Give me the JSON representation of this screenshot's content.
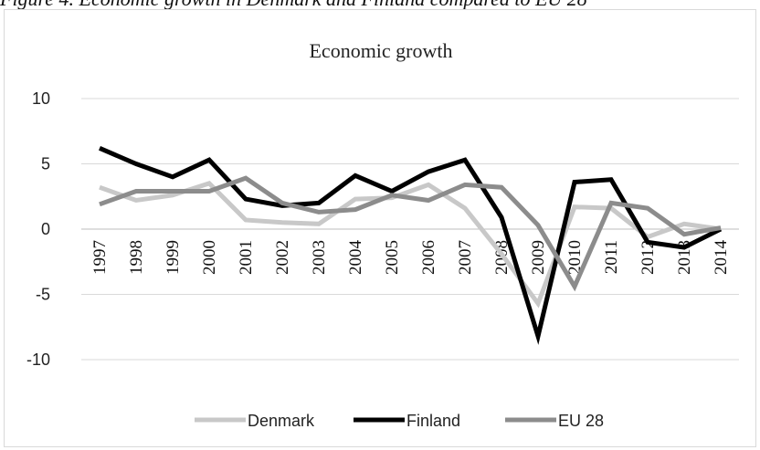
{
  "caption": "Figure 4. Economic growth in Denmark and Finland compared to EU 28",
  "chart_data": {
    "type": "line",
    "title": "Economic growth",
    "xlabel": "",
    "ylabel": "",
    "ylim": [
      -10,
      10
    ],
    "yticks": [
      10,
      5,
      0,
      -5,
      -10
    ],
    "grid": true,
    "legend_position": "bottom",
    "x": [
      "1997",
      "1998",
      "1999",
      "2000",
      "2001",
      "2002",
      "2003",
      "2004",
      "2005",
      "2006",
      "2007",
      "2008",
      "2009",
      "2010",
      "2011",
      "2012",
      "2013",
      "2014"
    ],
    "series": [
      {
        "name": "Denmark",
        "color": "#c8c8c8",
        "values": [
          3.2,
          2.2,
          2.6,
          3.5,
          0.7,
          0.5,
          0.4,
          2.3,
          2.4,
          3.4,
          1.6,
          -1.9,
          -5.7,
          1.7,
          1.6,
          -0.6,
          0.4,
          0.0
        ]
      },
      {
        "name": "Finland",
        "color": "#000000",
        "values": [
          6.2,
          5.0,
          4.0,
          5.3,
          2.3,
          1.8,
          2.0,
          4.1,
          2.9,
          4.4,
          5.3,
          0.9,
          -8.2,
          3.6,
          3.8,
          -1.0,
          -1.4,
          0.0
        ]
      },
      {
        "name": "EU 28",
        "color": "#8c8c8c",
        "values": [
          1.9,
          2.9,
          2.9,
          2.9,
          3.9,
          2.0,
          1.3,
          1.5,
          2.6,
          2.2,
          3.4,
          3.2,
          0.3,
          -4.4,
          2.0,
          1.6,
          -0.4,
          0.1
        ]
      }
    ]
  }
}
